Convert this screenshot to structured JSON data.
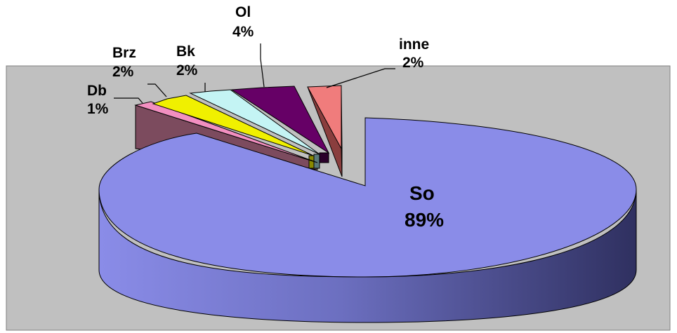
{
  "chart_data": {
    "type": "pie",
    "style": "3d-exploded",
    "title": "",
    "plot_area_color": "#c0c0c0",
    "slices": [
      {
        "name": "So",
        "value": 89,
        "label": "89%",
        "color": "#8a8ce8"
      },
      {
        "name": "Db",
        "value": 1,
        "label": "1%",
        "color": "#f28fc0"
      },
      {
        "name": "Brz",
        "value": 2,
        "label": "2%",
        "color": "#f0f000"
      },
      {
        "name": "Bk",
        "value": 2,
        "label": "2%",
        "color": "#c4f4f4"
      },
      {
        "name": "Ol",
        "value": 4,
        "label": "4%",
        "color": "#660066"
      },
      {
        "name": "inne",
        "value": 2,
        "label": "2%",
        "color": "#f07c7c"
      }
    ]
  }
}
